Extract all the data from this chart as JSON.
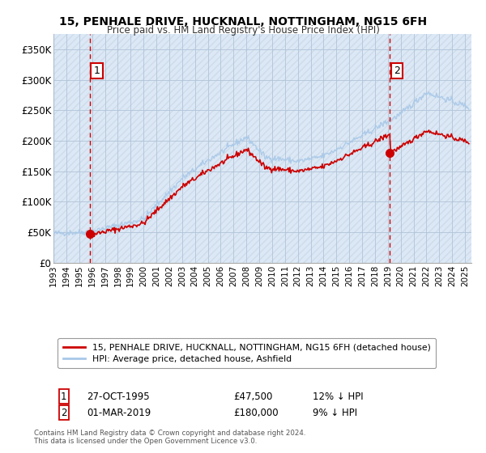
{
  "title": "15, PENHALE DRIVE, HUCKNALL, NOTTINGHAM, NG15 6FH",
  "subtitle": "Price paid vs. HM Land Registry's House Price Index (HPI)",
  "ylabel_ticks": [
    "£0",
    "£50K",
    "£100K",
    "£150K",
    "£200K",
    "£250K",
    "£300K",
    "£350K"
  ],
  "ytick_values": [
    0,
    50000,
    100000,
    150000,
    200000,
    250000,
    300000,
    350000
  ],
  "ylim": [
    0,
    375000
  ],
  "xlim_start": 1993.0,
  "xlim_end": 2025.5,
  "transaction1_date": 1995.82,
  "transaction1_price": 47500,
  "transaction2_date": 2019.16,
  "transaction2_price": 180000,
  "hpi_color": "#a8c8e8",
  "price_color": "#cc0000",
  "dashed_line_color": "#cc0000",
  "legend_label1": "15, PENHALE DRIVE, HUCKNALL, NOTTINGHAM, NG15 6FH (detached house)",
  "legend_label2": "HPI: Average price, detached house, Ashfield",
  "annotation1_label": "1",
  "annotation2_label": "2",
  "table_row1": [
    "1",
    "27-OCT-1995",
    "£47,500",
    "12% ↓ HPI"
  ],
  "table_row2": [
    "2",
    "01-MAR-2019",
    "£180,000",
    "9% ↓ HPI"
  ],
  "footer": "Contains HM Land Registry data © Crown copyright and database right 2024.\nThis data is licensed under the Open Government Licence v3.0.",
  "plot_bg_color": "#dce8f5",
  "bg_color": "#ffffff",
  "hatch_color": "#c0cfe0"
}
